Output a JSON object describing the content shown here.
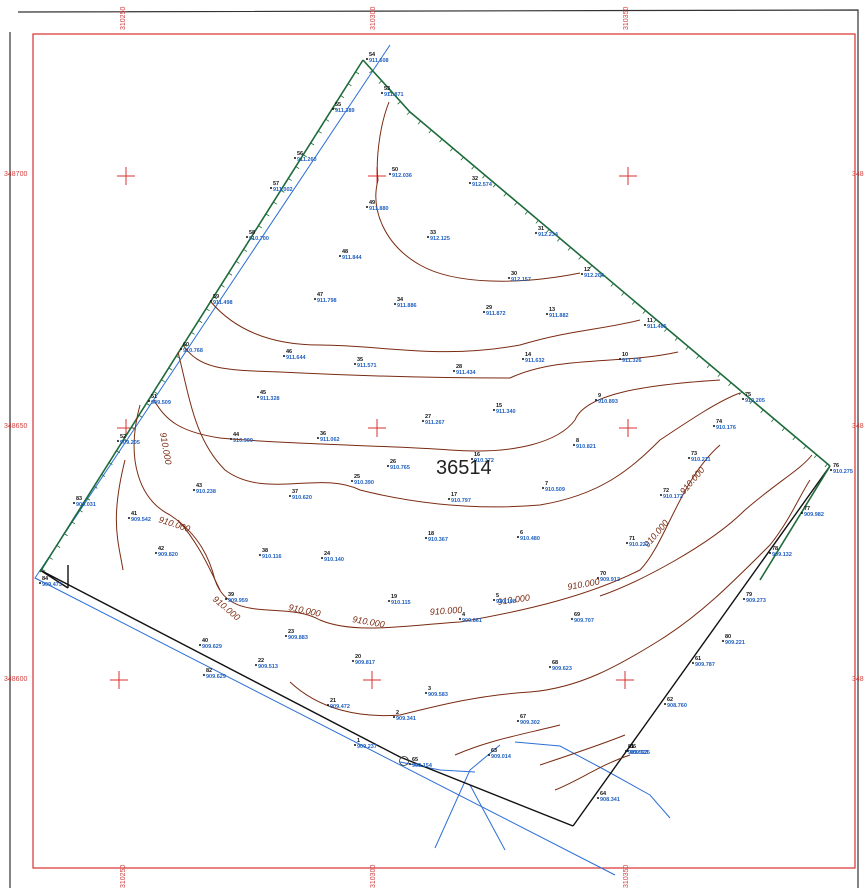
{
  "parcel_label": "36514",
  "grid_labels": {
    "top": [
      "310250",
      "310300",
      "310350"
    ],
    "bottom": [
      "310250",
      "310300",
      "310350"
    ],
    "left": [
      "348700",
      "348650",
      "348600"
    ],
    "right": [
      "348",
      "348",
      "348"
    ]
  },
  "contour_label": "910.000",
  "points": [
    {
      "n": "1",
      "e": "909.237"
    },
    {
      "n": "2",
      "e": "909.341"
    },
    {
      "n": "3",
      "e": "909.583"
    },
    {
      "n": "4",
      "e": "909.861"
    },
    {
      "n": "5",
      "e": "910.108"
    },
    {
      "n": "6",
      "e": "910.480"
    },
    {
      "n": "7",
      "e": "910.509"
    },
    {
      "n": "8",
      "e": "910.821"
    },
    {
      "n": "9",
      "e": "910.893"
    },
    {
      "n": "10",
      "e": "911.326"
    },
    {
      "n": "11",
      "e": "911.465"
    },
    {
      "n": "12",
      "e": "912.204"
    },
    {
      "n": "13",
      "e": "911.882"
    },
    {
      "n": "14",
      "e": "911.632"
    },
    {
      "n": "15",
      "e": "911.340"
    },
    {
      "n": "16",
      "e": "910.372"
    },
    {
      "n": "17",
      "e": "910.797"
    },
    {
      "n": "18",
      "e": "910.367"
    },
    {
      "n": "19",
      "e": "910.115"
    },
    {
      "n": "20",
      "e": "909.817"
    },
    {
      "n": "21",
      "e": "909.472"
    },
    {
      "n": "22",
      "e": "909.513"
    },
    {
      "n": "23",
      "e": "909.883"
    },
    {
      "n": "24",
      "e": "910.140"
    },
    {
      "n": "25",
      "e": "910.390"
    },
    {
      "n": "26",
      "e": "910.765"
    },
    {
      "n": "27",
      "e": "911.267"
    },
    {
      "n": "28",
      "e": "911.434"
    },
    {
      "n": "29",
      "e": "911.872"
    },
    {
      "n": "30",
      "e": "912.157"
    },
    {
      "n": "31",
      "e": "912.234"
    },
    {
      "n": "32",
      "e": "912.574"
    },
    {
      "n": "33",
      "e": "912.125"
    },
    {
      "n": "34",
      "e": "911.886"
    },
    {
      "n": "35",
      "e": "911.571"
    },
    {
      "n": "36",
      "e": "911.062"
    },
    {
      "n": "37",
      "e": "910.620"
    },
    {
      "n": "38",
      "e": "910.116"
    },
    {
      "n": "39",
      "e": "909.959"
    },
    {
      "n": "40",
      "e": "909.629"
    },
    {
      "n": "41",
      "e": "909.542"
    },
    {
      "n": "42",
      "e": "909.820"
    },
    {
      "n": "43",
      "e": "910.238"
    },
    {
      "n": "44",
      "e": "910.909"
    },
    {
      "n": "45",
      "e": "911.328"
    },
    {
      "n": "46",
      "e": "911.644"
    },
    {
      "n": "47",
      "e": "911.798"
    },
    {
      "n": "48",
      "e": "911.844"
    },
    {
      "n": "49",
      "e": "911.880"
    },
    {
      "n": "50",
      "e": "912.036"
    },
    {
      "n": "51",
      "e": "909.509"
    },
    {
      "n": "52",
      "e": "909.205"
    },
    {
      "n": "53",
      "e": "911.871"
    },
    {
      "n": "54",
      "e": "911.608"
    },
    {
      "n": "55",
      "e": "911.389"
    },
    {
      "n": "56",
      "e": "911.260"
    },
    {
      "n": "57",
      "e": "911.002"
    },
    {
      "n": "58",
      "e": "910.700"
    },
    {
      "n": "59",
      "e": "911.498"
    },
    {
      "n": "60",
      "e": "910.768"
    },
    {
      "n": "61",
      "e": "909.787"
    },
    {
      "n": "62",
      "e": "908.760"
    },
    {
      "n": "63",
      "e": "909.014"
    },
    {
      "n": "64",
      "e": "908.341"
    },
    {
      "n": "65",
      "e": "909.154"
    },
    {
      "n": "66",
      "e": "909.525"
    },
    {
      "n": "67",
      "e": "909.302"
    },
    {
      "n": "68",
      "e": "909.623"
    },
    {
      "n": "69",
      "e": "909.707"
    },
    {
      "n": "70",
      "e": "909.912"
    },
    {
      "n": "71",
      "e": "910.222"
    },
    {
      "n": "72",
      "e": "910.172"
    },
    {
      "n": "73",
      "e": "910.211"
    },
    {
      "n": "74",
      "e": "910.176"
    },
    {
      "n": "75",
      "e": "910.205"
    },
    {
      "n": "76",
      "e": "910.275"
    },
    {
      "n": "77",
      "e": "909.982"
    },
    {
      "n": "78",
      "e": "909.132"
    },
    {
      "n": "79",
      "e": "909.273"
    },
    {
      "n": "80",
      "e": "909.221"
    },
    {
      "n": "81",
      "e": "909.523"
    },
    {
      "n": "82",
      "e": "909.629"
    },
    {
      "n": "83",
      "e": "909.031"
    },
    {
      "n": "84",
      "e": "909.473"
    }
  ]
}
